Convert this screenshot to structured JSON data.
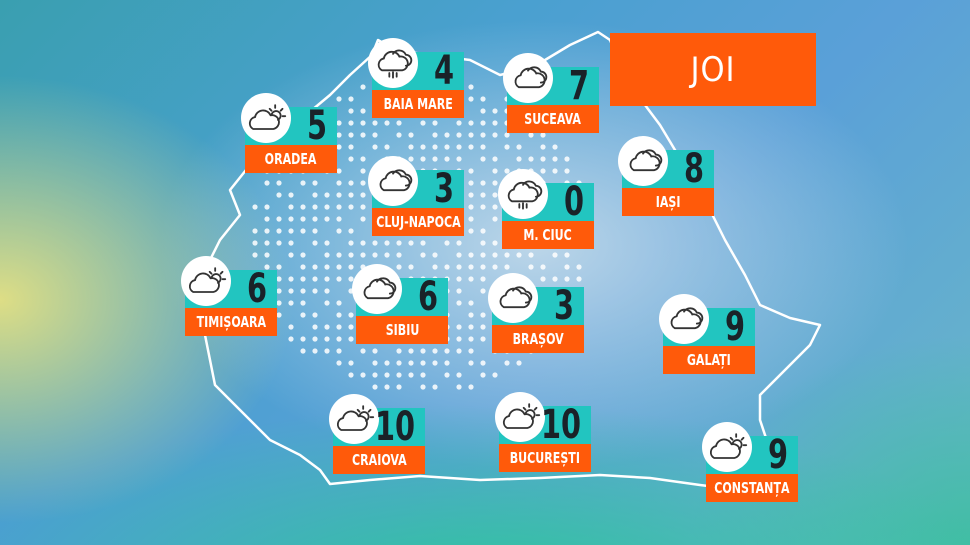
{
  "day": "JOI",
  "colors": {
    "accent": "#ff5a0a",
    "teal": "#22c5c0",
    "text": "#1a2228"
  },
  "cities": [
    {
      "name": "ORADEA",
      "temp": "5",
      "icon": "partly-cloudy-icon"
    },
    {
      "name": "BAIA MARE",
      "temp": "4",
      "icon": "rain-cloud-icon"
    },
    {
      "name": "SUCEAVA",
      "temp": "7",
      "icon": "cloudy-icon"
    },
    {
      "name": "CLUJ-NAPOCA",
      "temp": "3",
      "icon": "cloudy-icon"
    },
    {
      "name": "IAȘI",
      "temp": "8",
      "icon": "cloudy-icon"
    },
    {
      "name": "M. CIUC",
      "temp": "0",
      "icon": "rain-cloud-icon"
    },
    {
      "name": "TIMIȘOARA",
      "temp": "6",
      "icon": "partly-cloudy-icon"
    },
    {
      "name": "SIBIU",
      "temp": "6",
      "icon": "cloudy-icon"
    },
    {
      "name": "BRAȘOV",
      "temp": "3",
      "icon": "cloudy-icon"
    },
    {
      "name": "GALAȚI",
      "temp": "9",
      "icon": "cloudy-icon"
    },
    {
      "name": "CRAIOVA",
      "temp": "10",
      "icon": "partly-cloudy-icon"
    },
    {
      "name": "BUCUREȘTI",
      "temp": "10",
      "icon": "partly-cloudy-icon"
    },
    {
      "name": "CONSTANȚA",
      "temp": "9",
      "icon": "partly-cloudy-icon"
    }
  ]
}
